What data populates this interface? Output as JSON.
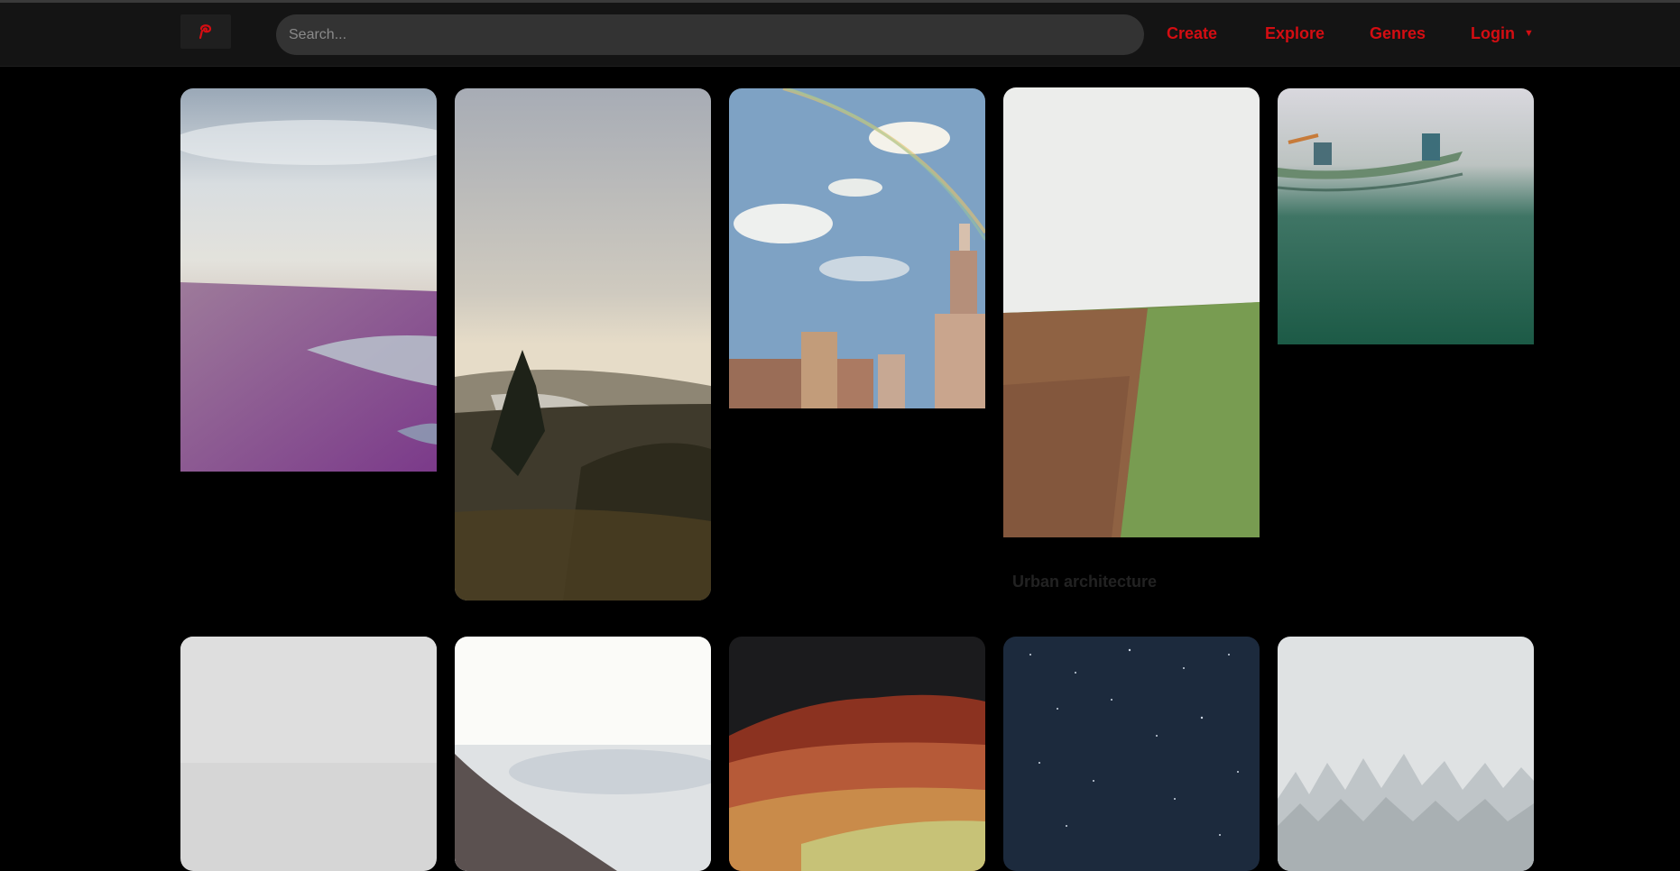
{
  "header": {
    "logo_icon": "brand-swirl-icon",
    "search": {
      "placeholder": "Search...",
      "value": ""
    },
    "nav": {
      "create": "Create",
      "explore": "Explore",
      "genres": "Genres",
      "login": "Login"
    },
    "accent_color": "#d40d12"
  },
  "gallery": {
    "caption": "Urban architecture",
    "images": [
      "beach-shore",
      "river-valley",
      "rainbow-city",
      "plowed-field",
      "canoe-lake",
      "fog",
      "sea-of-clouds",
      "autumn-hills",
      "starry-sky",
      "snowy-forest"
    ]
  }
}
